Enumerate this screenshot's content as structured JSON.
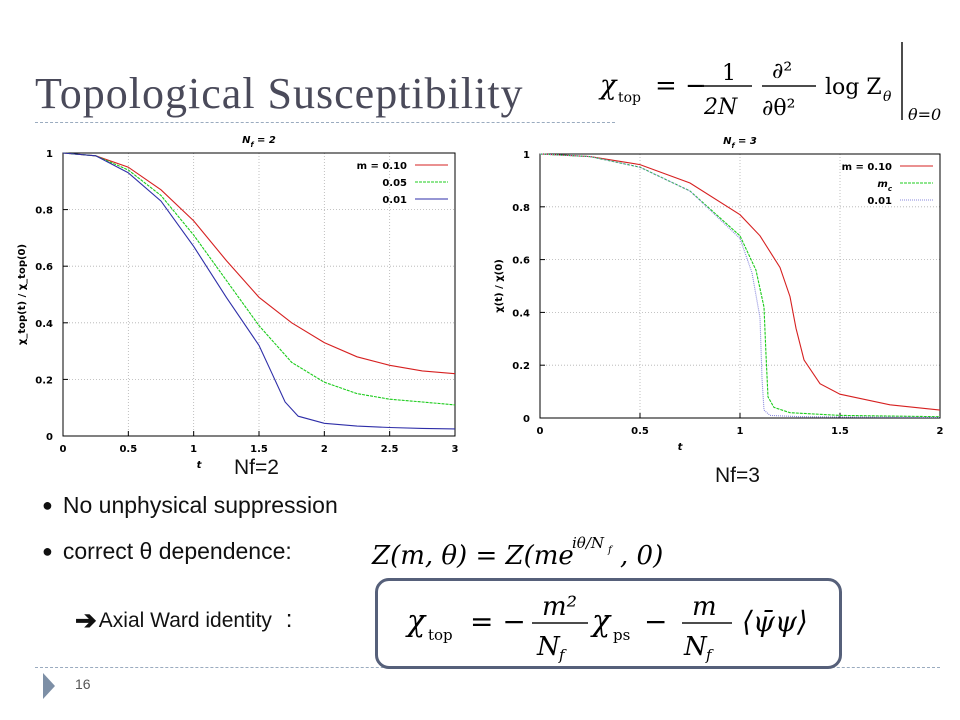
{
  "slide": {
    "title": "Topological Susceptibility",
    "page_number": "16",
    "accent_color": "#9aabbf",
    "nf2_caption": "Nf=2",
    "nf3_caption": "Nf=3",
    "bullets": [
      "No unphysical suppression",
      "correct θ dependence:"
    ],
    "ward_label": "Axial Ward identity",
    "ward_colon": ":",
    "arrow_icon": "right-arrow-icon"
  },
  "formulas": {
    "chi_def": {
      "lhs": "χ",
      "lhs_sub": "top",
      "eq": "= −",
      "num": "1",
      "den": "2N",
      "dnum": "∂²",
      "dden": "∂θ²",
      "log": "log Z",
      "log_sub": "θ",
      "eval_sub": "θ=0"
    },
    "theta_dep": "Z(m, θ) = Z(me^{iθ/N_f}, 0)",
    "ward": {
      "lhs": "χ",
      "lhs_sub": "top",
      "eq": "= −",
      "n1": "m²",
      "d1": "N",
      "d_sub": "f",
      "t1": "χ",
      "t1_sub": "ps",
      "minus": "−",
      "n2": "m",
      "cond": "⟨ψ̄ψ⟩"
    }
  },
  "chart_data": [
    {
      "type": "line",
      "title": "N_f = 2",
      "xlabel": "t",
      "ylabel": "χ_top(t) / χ_top(0)",
      "xlim": [
        0,
        3
      ],
      "ylim": [
        0,
        1
      ],
      "xticks": [
        "0",
        "0.5",
        "1",
        "1.5",
        "2",
        "2.5",
        "3"
      ],
      "yticks": [
        "0",
        "0.2",
        "0.4",
        "0.6",
        "0.8",
        "1"
      ],
      "grid": true,
      "legend_position": "top-right",
      "legend_title_prefix": "m =",
      "series": [
        {
          "name": "0.10",
          "color": "#d62020",
          "dash": "",
          "x": [
            0,
            0.25,
            0.5,
            0.75,
            1.0,
            1.25,
            1.5,
            1.75,
            2.0,
            2.25,
            2.5,
            2.75,
            3.0
          ],
          "y": [
            1.0,
            0.99,
            0.95,
            0.87,
            0.76,
            0.62,
            0.49,
            0.4,
            0.33,
            0.28,
            0.25,
            0.23,
            0.22
          ]
        },
        {
          "name": "0.05",
          "color": "#1ccc1c",
          "dash": "3,1",
          "x": [
            0,
            0.25,
            0.5,
            0.75,
            1.0,
            1.25,
            1.5,
            1.75,
            2.0,
            2.25,
            2.5,
            2.75,
            3.0
          ],
          "y": [
            1.0,
            0.99,
            0.94,
            0.85,
            0.71,
            0.55,
            0.39,
            0.26,
            0.19,
            0.15,
            0.13,
            0.12,
            0.11
          ]
        },
        {
          "name": "0.01",
          "color": "#2e2ea8",
          "dash": "",
          "x": [
            0,
            0.25,
            0.5,
            0.75,
            1.0,
            1.25,
            1.5,
            1.6,
            1.7,
            1.8,
            2.0,
            2.25,
            2.5,
            2.75,
            3.0
          ],
          "y": [
            1.0,
            0.99,
            0.93,
            0.83,
            0.67,
            0.49,
            0.32,
            0.22,
            0.12,
            0.07,
            0.045,
            0.035,
            0.03,
            0.027,
            0.025
          ]
        }
      ]
    },
    {
      "type": "line",
      "title": "N_f = 3",
      "xlabel": "t",
      "ylabel": "χ(t) / χ(0)",
      "xlim": [
        0,
        2
      ],
      "ylim": [
        0,
        1
      ],
      "xticks": [
        "0",
        "0.5",
        "1",
        "1.5",
        "2"
      ],
      "yticks": [
        "0",
        "0.2",
        "0.4",
        "0.6",
        "0.8",
        "1"
      ],
      "grid": true,
      "legend_position": "top-right",
      "legend_title_prefix": "m =",
      "series": [
        {
          "name": "0.10",
          "color": "#d62020",
          "dash": "",
          "x": [
            0,
            0.25,
            0.5,
            0.75,
            1.0,
            1.1,
            1.2,
            1.25,
            1.28,
            1.32,
            1.4,
            1.5,
            1.75,
            2.0
          ],
          "y": [
            1.0,
            0.99,
            0.96,
            0.89,
            0.77,
            0.69,
            0.57,
            0.46,
            0.34,
            0.22,
            0.13,
            0.09,
            0.05,
            0.03
          ]
        },
        {
          "name": "m_c",
          "color": "#1ccc1c",
          "dash": "3,1",
          "x": [
            0,
            0.25,
            0.5,
            0.75,
            1.0,
            1.08,
            1.12,
            1.13,
            1.14,
            1.17,
            1.25,
            1.5,
            2.0
          ],
          "y": [
            1.0,
            0.99,
            0.95,
            0.86,
            0.69,
            0.56,
            0.42,
            0.24,
            0.08,
            0.04,
            0.02,
            0.01,
            0.005
          ]
        },
        {
          "name": "0.01",
          "color": "#8888dd",
          "dash": "1,1",
          "x": [
            0,
            0.25,
            0.5,
            0.75,
            1.0,
            1.06,
            1.1,
            1.11,
            1.12,
            1.15,
            1.3,
            2.0
          ],
          "y": [
            1.0,
            0.99,
            0.95,
            0.86,
            0.68,
            0.55,
            0.38,
            0.15,
            0.03,
            0.01,
            0.005,
            0.002
          ]
        }
      ]
    }
  ]
}
